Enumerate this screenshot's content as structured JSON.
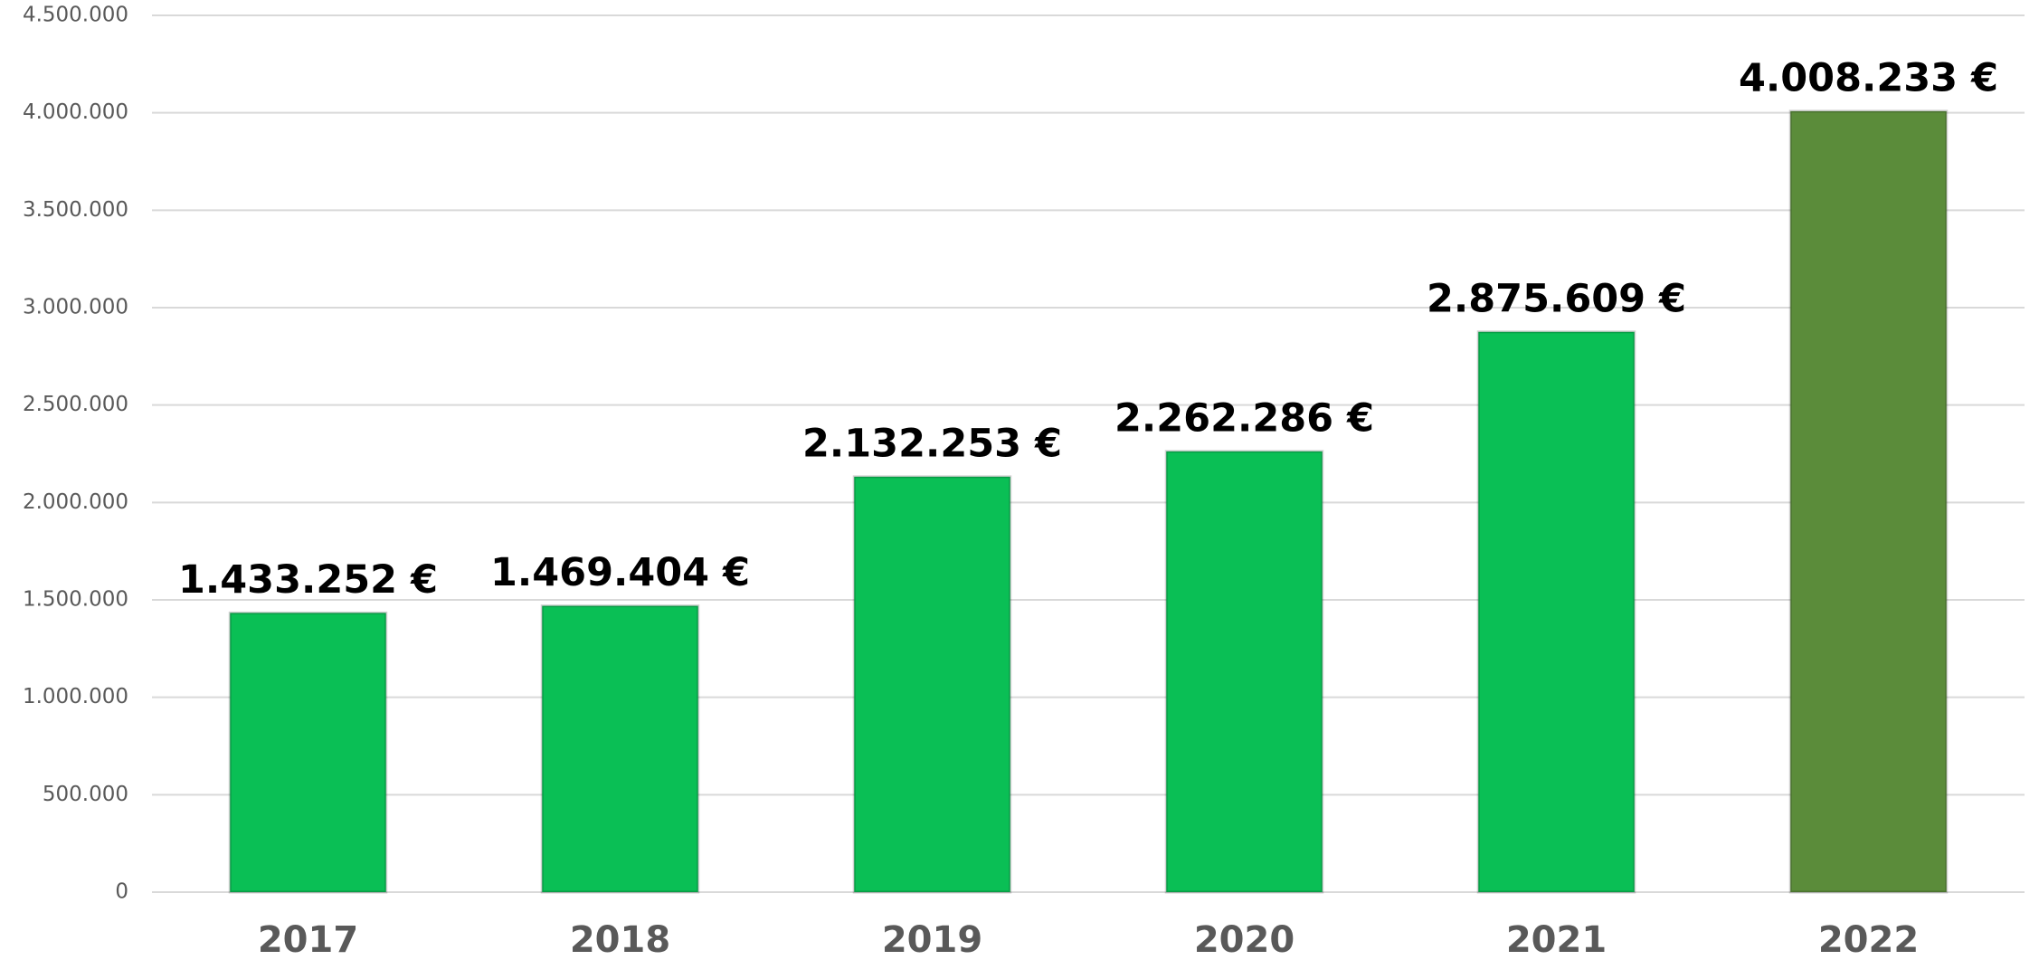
{
  "chart_data": {
    "type": "bar",
    "categories": [
      "2017",
      "2018",
      "2019",
      "2020",
      "2021",
      "2022"
    ],
    "values": [
      1433252,
      1469404,
      2132253,
      2262286,
      2875609,
      4008233
    ],
    "value_labels": [
      "1.433.252 €",
      "1.469.404 €",
      "2.132.253 €",
      "2.262.286 €",
      "2.875.609 €",
      "4.008.233 €"
    ],
    "colors": [
      "#0abf55",
      "#0abf55",
      "#0abf55",
      "#0abf55",
      "#0abf55",
      "#5b8c3a"
    ],
    "ylim": [
      0,
      4500000
    ],
    "yticks": [
      0,
      {
        "value": 500000,
        "label": "500.000"
      },
      {
        "value": 1000000,
        "label": "1.000.000"
      },
      {
        "value": 1500000,
        "label": "1.500.000"
      },
      {
        "value": 2000000,
        "label": "2.000.000"
      },
      {
        "value": 2500000,
        "label": "2.500.000"
      },
      {
        "value": 3000000,
        "label": "3.000.000"
      },
      {
        "value": 3500000,
        "label": "3.500.000"
      },
      {
        "value": 4000000,
        "label": "4.000.000"
      },
      {
        "value": 4500000,
        "label": "4.500.000"
      }
    ],
    "grid": true
  }
}
